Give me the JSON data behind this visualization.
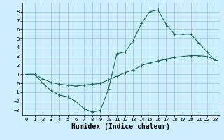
{
  "xlabel": "Humidex (Indice chaleur)",
  "background_color": "#cceeff",
  "grid_color": "#99cccc",
  "line_color": "#1a6b5a",
  "line1_x": [
    0,
    1,
    2,
    3,
    4,
    5,
    6,
    7,
    8,
    9,
    10,
    11,
    12,
    13,
    14,
    15,
    16,
    17,
    18,
    19,
    20,
    21,
    22,
    23
  ],
  "line1_y": [
    1.0,
    1.0,
    0.0,
    -0.8,
    -1.3,
    -1.5,
    -2.0,
    -2.8,
    -3.2,
    -3.0,
    -0.6,
    3.3,
    3.5,
    4.8,
    6.7,
    8.0,
    8.2,
    6.6,
    5.5,
    5.5,
    5.5,
    4.5,
    3.5,
    2.6
  ],
  "line2_x": [
    0,
    1,
    2,
    3,
    4,
    5,
    6,
    7,
    8,
    9,
    10,
    11,
    12,
    13,
    14,
    15,
    16,
    17,
    18,
    19,
    20,
    21,
    22,
    23
  ],
  "line2_y": [
    1.0,
    1.0,
    0.5,
    0.1,
    -0.1,
    -0.2,
    -0.3,
    -0.2,
    -0.1,
    0.0,
    0.4,
    0.8,
    1.2,
    1.5,
    2.0,
    2.3,
    2.5,
    2.7,
    2.9,
    3.0,
    3.1,
    3.1,
    3.0,
    2.6
  ],
  "xlim": [
    -0.5,
    23.5
  ],
  "ylim": [
    -3.5,
    9.0
  ],
  "yticks": [
    -3,
    -2,
    -1,
    0,
    1,
    2,
    3,
    4,
    5,
    6,
    7,
    8
  ],
  "xticks": [
    0,
    1,
    2,
    3,
    4,
    5,
    6,
    7,
    8,
    9,
    10,
    11,
    12,
    13,
    14,
    15,
    16,
    17,
    18,
    19,
    20,
    21,
    22,
    23
  ],
  "marker": "+",
  "marker_size": 3,
  "linewidth": 0.8,
  "xlabel_fontsize": 7,
  "tick_fontsize": 5
}
